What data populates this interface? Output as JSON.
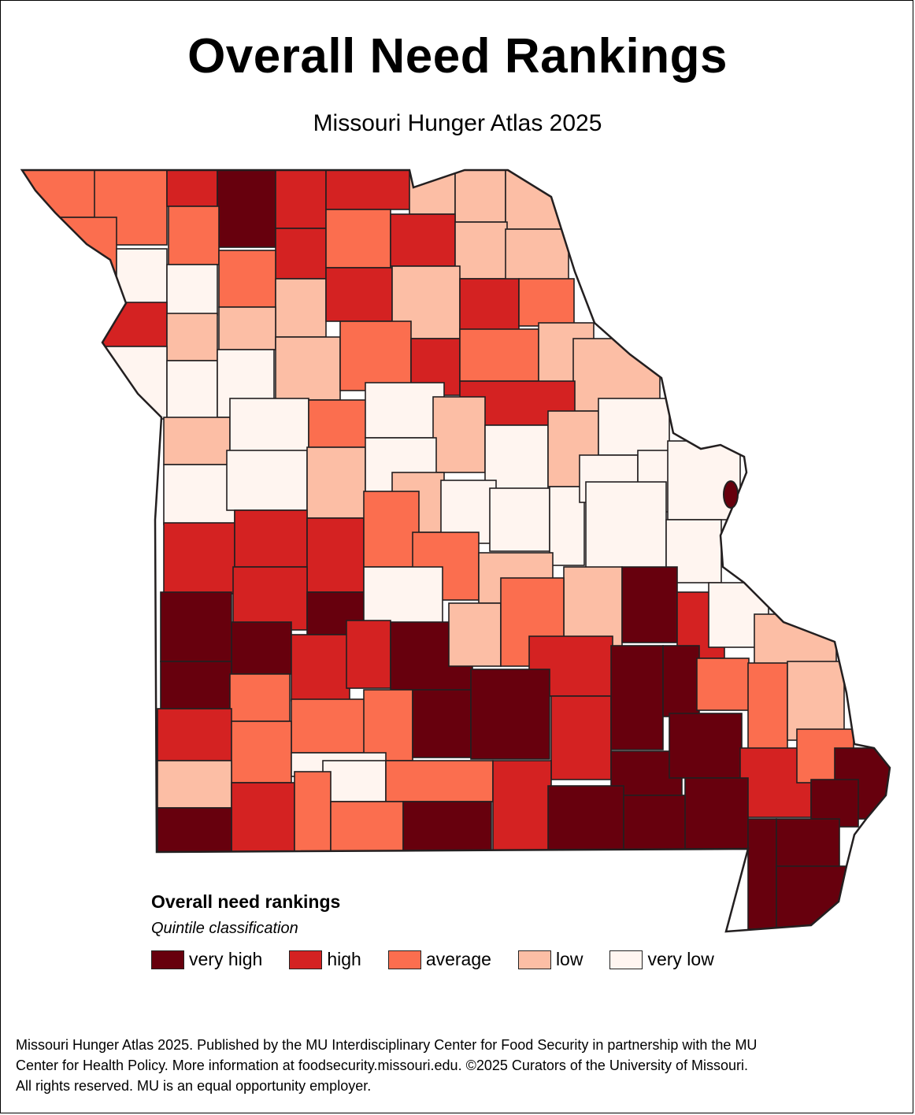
{
  "title": "Overall Need Rankings",
  "subtitle": "Missouri Hunger Atlas 2025",
  "legend": {
    "title": "Overall need rankings",
    "subtitle": "Quintile classification",
    "classes": [
      {
        "id": "very_high",
        "label": "very high",
        "color": "#67000d"
      },
      {
        "id": "high",
        "label": "high",
        "color": "#d42222"
      },
      {
        "id": "average",
        "label": "average",
        "color": "#fb6e4f"
      },
      {
        "id": "low",
        "label": "low",
        "color": "#fcbea5"
      },
      {
        "id": "very_low",
        "label": "very low",
        "color": "#fff5f0"
      }
    ]
  },
  "map": {
    "region": "Missouri counties",
    "colors": {
      "border": "#231f20",
      "outline": "#231f20"
    }
  },
  "footer": {
    "line1": "Missouri Hunger Atlas 2025. Published by the MU Interdisciplinary Center for Food Security in partnership with the MU",
    "line2": "Center for Health Policy. More information at foodsecurity.missouri.edu. ©2025 Curators of the University of Missouri.",
    "line3": "All rights reserved. MU is an equal opportunity employer."
  }
}
